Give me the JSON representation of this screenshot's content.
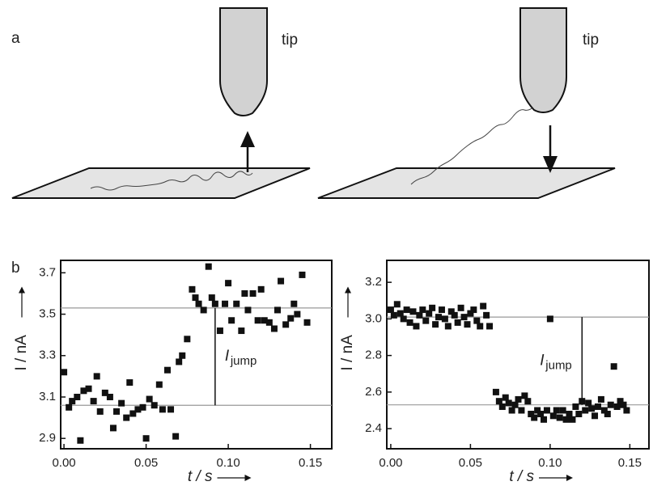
{
  "diagram": {
    "panel_label": "a",
    "tip_labels": [
      "tip",
      "tip"
    ]
  },
  "panel_b_label": "b",
  "chart_data": [
    {
      "type": "scatter",
      "ylabel": "I / nA",
      "xlabel": "t / s",
      "annotation": "I",
      "annotation_sub": "jump",
      "hlines": [
        3.06,
        3.53
      ],
      "jump_t": 0.092,
      "color": "#111111",
      "xlim": [
        -0.002,
        0.163
      ],
      "ylim": [
        2.85,
        3.76
      ],
      "xticks": [
        {
          "value": 0,
          "label": "0.00"
        },
        {
          "value": 0.05,
          "label": "0.05"
        },
        {
          "value": 0.1,
          "label": "0.10"
        },
        {
          "value": 0.15,
          "label": "0.15"
        }
      ],
      "yticks": [
        2.9,
        3.1,
        3.3,
        3.5,
        3.7
      ],
      "x": [
        0.0,
        0.003,
        0.005,
        0.008,
        0.01,
        0.012,
        0.015,
        0.018,
        0.02,
        0.022,
        0.025,
        0.028,
        0.03,
        0.032,
        0.035,
        0.038,
        0.04,
        0.042,
        0.045,
        0.048,
        0.05,
        0.052,
        0.055,
        0.058,
        0.06,
        0.063,
        0.065,
        0.068,
        0.07,
        0.072,
        0.075,
        0.078,
        0.08,
        0.082,
        0.085,
        0.088,
        0.09,
        0.092,
        0.095,
        0.098,
        0.1,
        0.102,
        0.105,
        0.108,
        0.11,
        0.112,
        0.115,
        0.118,
        0.12,
        0.122,
        0.125,
        0.128,
        0.13,
        0.132,
        0.135,
        0.138,
        0.14,
        0.142,
        0.145,
        0.148
      ],
      "values": [
        3.22,
        3.05,
        3.08,
        3.1,
        2.89,
        3.13,
        3.14,
        3.08,
        3.2,
        3.03,
        3.12,
        3.1,
        2.95,
        3.03,
        3.07,
        3.0,
        3.17,
        3.02,
        3.04,
        3.05,
        2.9,
        3.09,
        3.06,
        3.16,
        3.04,
        3.23,
        3.04,
        2.91,
        3.27,
        3.3,
        3.38,
        3.62,
        3.58,
        3.55,
        3.52,
        3.73,
        3.58,
        3.55,
        3.42,
        3.55,
        3.65,
        3.47,
        3.55,
        3.42,
        3.6,
        3.52,
        3.6,
        3.47,
        3.62,
        3.47,
        3.46,
        3.43,
        3.52,
        3.66,
        3.45,
        3.48,
        3.55,
        3.5,
        3.69,
        3.46
      ]
    },
    {
      "type": "scatter",
      "ylabel": "I / nA",
      "xlabel": "t / s",
      "annotation": "I",
      "annotation_sub": "jump",
      "hlines": [
        2.53,
        3.01
      ],
      "jump_t": 0.12,
      "color": "#111111",
      "xlim": [
        -0.0025,
        0.162
      ],
      "ylim": [
        2.29,
        3.32
      ],
      "xticks": [
        {
          "value": 0,
          "label": "0.00"
        },
        {
          "value": 0.05,
          "label": "0.05"
        },
        {
          "value": 0.1,
          "label": "0.10"
        },
        {
          "value": 0.15,
          "label": "0.15"
        }
      ],
      "yticks": [
        2.4,
        2.6,
        2.8,
        {
          "value": 3,
          "label": "3.0"
        },
        3.2
      ],
      "x": [
        0.0,
        0.002,
        0.004,
        0.006,
        0.008,
        0.01,
        0.012,
        0.014,
        0.016,
        0.018,
        0.02,
        0.022,
        0.024,
        0.026,
        0.028,
        0.03,
        0.032,
        0.034,
        0.036,
        0.038,
        0.04,
        0.042,
        0.044,
        0.046,
        0.048,
        0.05,
        0.052,
        0.054,
        0.056,
        0.058,
        0.06,
        0.062,
        0.066,
        0.068,
        0.07,
        0.072,
        0.074,
        0.076,
        0.078,
        0.08,
        0.082,
        0.084,
        0.086,
        0.088,
        0.09,
        0.092,
        0.094,
        0.096,
        0.098,
        0.1,
        0.102,
        0.104,
        0.106,
        0.108,
        0.11,
        0.112,
        0.114,
        0.116,
        0.118,
        0.12,
        0.122,
        0.124,
        0.126,
        0.128,
        0.13,
        0.132,
        0.134,
        0.136,
        0.138,
        0.14,
        0.142,
        0.144,
        0.146,
        0.148
      ],
      "values": [
        3.05,
        3.02,
        3.08,
        3.03,
        3.0,
        3.05,
        2.98,
        3.04,
        2.96,
        3.02,
        3.05,
        2.99,
        3.03,
        3.06,
        2.97,
        3.01,
        3.05,
        3.0,
        2.96,
        3.04,
        3.02,
        2.98,
        3.06,
        3.01,
        2.97,
        3.03,
        3.05,
        2.99,
        2.96,
        3.07,
        3.02,
        2.96,
        2.6,
        2.55,
        2.52,
        2.57,
        2.54,
        2.5,
        2.53,
        2.56,
        2.5,
        2.58,
        2.55,
        2.48,
        2.46,
        2.5,
        2.48,
        2.45,
        2.5,
        3.0,
        2.47,
        2.5,
        2.46,
        2.5,
        2.45,
        2.48,
        2.45,
        2.52,
        2.48,
        2.55,
        2.5,
        2.54,
        2.51,
        2.47,
        2.52,
        2.56,
        2.5,
        2.48,
        2.53,
        2.74,
        2.52,
        2.55,
        2.53,
        2.5
      ]
    }
  ]
}
